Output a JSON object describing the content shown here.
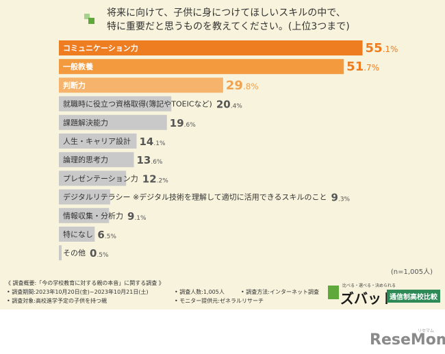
{
  "header": {
    "title_line1": "将来に向けて、子供に身につけてほしいスキルの中で、",
    "title_line2": "特に重要だと思うものを教えてください。(上位3つまで)"
  },
  "chart_data": {
    "type": "bar",
    "orientation": "horizontal",
    "title": "将来に向けて、子供に身につけてほしいスキルの中で、特に重要だと思うものを教えてください。(上位3つまで)",
    "unit": "%",
    "categories": [
      "コミュニケーション力",
      "一般教養",
      "判断力",
      "就職時に役立つ資格取得(簿記やTOEICなど)",
      "課題解決能力",
      "人生・キャリア設計",
      "論理的思考力",
      "プレゼンテーション力",
      "デジタルリテラシー ※デジタル技術を理解して適切に活用できるスキルのこと",
      "情報収集・分析力",
      "特になし",
      "その他"
    ],
    "values": [
      55.1,
      51.7,
      29.8,
      20.4,
      19.6,
      14.1,
      13.6,
      12.2,
      9.3,
      9.1,
      6.5,
      0.5
    ],
    "value_labels": [
      "55.1%",
      "51.7%",
      "29.8%",
      "20.4%",
      "19.6%",
      "14.1%",
      "13.6%",
      "12.2%",
      "9.3%",
      "9.1%",
      "6.5%",
      "0.5%"
    ],
    "colors": [
      "#ee7d22",
      "#f39a3f",
      "#f5b36b",
      "#c9c9c9",
      "#c9c9c9",
      "#c9c9c9",
      "#c9c9c9",
      "#c9c9c9",
      "#c9c9c9",
      "#c9c9c9",
      "#c9c9c9",
      "#c9c9c9"
    ],
    "value_colors": [
      "#ee7d22",
      "#ee7d22",
      "#f0a24f",
      "#555555",
      "#555555",
      "#555555",
      "#555555",
      "#555555",
      "#555555",
      "#555555",
      "#555555",
      "#555555"
    ],
    "grid": false
  },
  "sample_note": "(n=1,005人)",
  "footnotes": {
    "survey_title": "《 調査概要:「今の学校教育に対する親の本音」に関する調査 》",
    "period": "• 調査期間:2023年10月20日(金)~2023年10月21日(土)",
    "count": "• 調査人数:1,005人",
    "method": "• 調査方法:インターネット調査",
    "target": "• 調査対象:高校進学予定の子供を持つ親",
    "provider": "• モニター提供元:ゼネラルリサーチ"
  },
  "brand": {
    "tagline": "比べる・選べる・決められる",
    "name": "ズバット",
    "badge": "通信制高校比較"
  },
  "site_logo": "ReseMom",
  "site_logo_sub": "リセマム",
  "colors": {
    "background": "#f7f3dc",
    "accent": "#ee7d22",
    "gray_bar": "#c9c9c9",
    "title_mark_light": "#a8d08d",
    "title_mark_dark": "#5fa83b"
  }
}
